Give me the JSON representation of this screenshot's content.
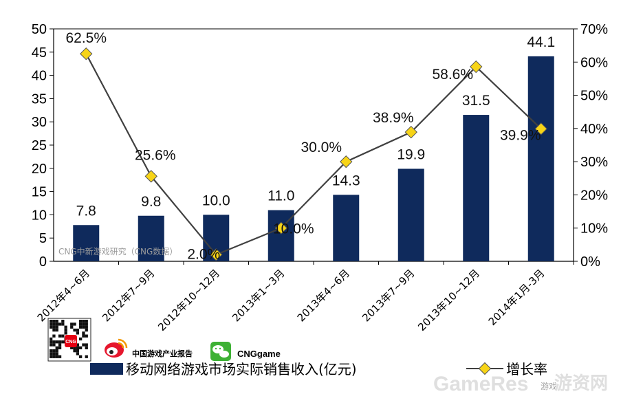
{
  "chart_data": {
    "type": "bar",
    "categories": [
      "2012年4~6月",
      "2012年7~9月",
      "2012年10~12月",
      "2013年1~3月",
      "2013年4~6月",
      "2013年7~9月",
      "2013年10~12月",
      "2014年1月-3月"
    ],
    "series": [
      {
        "name": "移动网络游戏市场实际销售收入(亿元)",
        "type": "bar",
        "axis": "left",
        "color": "#0f2a5c",
        "values": [
          7.8,
          9.8,
          10.0,
          11.0,
          14.3,
          19.9,
          31.5,
          44.1
        ],
        "labels": [
          "7.8",
          "9.8",
          "10.0",
          "11.0",
          "14.3",
          "19.9",
          "31.5",
          "44.1"
        ]
      },
      {
        "name": "增长率",
        "type": "line",
        "axis": "right",
        "color": "#404040",
        "marker_color": "#f7d417",
        "values": [
          62.5,
          25.6,
          2.0,
          10.0,
          30.0,
          38.9,
          58.6,
          39.9
        ],
        "labels": [
          "62.5%",
          "25.6%",
          "2.0%",
          "10.0%",
          "30.0%",
          "38.9%",
          "58.6%",
          "39.9%"
        ]
      }
    ],
    "y_left": {
      "min": 0,
      "max": 50,
      "ticks": [
        "0",
        "5",
        "10",
        "15",
        "20",
        "25",
        "30",
        "35",
        "40",
        "45",
        "50"
      ]
    },
    "y_right": {
      "min": 0,
      "max": 70,
      "ticks": [
        "0%",
        "10%",
        "20%",
        "30%",
        "40%",
        "50%",
        "60%",
        "70%"
      ]
    },
    "grid": false,
    "legend_position": "bottom"
  },
  "watermarks": {
    "inline": "CNG中新游戏研究（CNG数据）",
    "brand_weibo": "中国游戏产业报告",
    "brand_wechat": "CNGgame",
    "site_latin": "GameRes",
    "site_small": "游戏",
    "site_cn": "游资网",
    "qr_badge": "CNG"
  },
  "legend": {
    "bar_label": "移动网络游戏市场实际销售收入(亿元)",
    "line_label": "增长率"
  }
}
